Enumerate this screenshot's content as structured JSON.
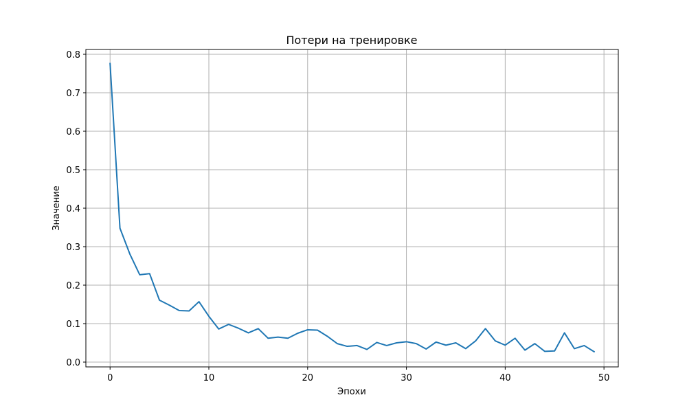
{
  "chart_data": {
    "type": "line",
    "title": "Потери на тренировке",
    "xlabel": "Эпохи",
    "ylabel": "Значение",
    "xlim": [
      -2.45,
      51.45
    ],
    "ylim": [
      -0.0125,
      0.8125
    ],
    "xticks": [
      0,
      10,
      20,
      30,
      40,
      50
    ],
    "yticks": [
      0.0,
      0.1,
      0.2,
      0.3,
      0.4,
      0.5,
      0.6,
      0.7,
      0.8
    ],
    "xtick_labels": [
      "0",
      "10",
      "20",
      "30",
      "40",
      "50"
    ],
    "ytick_labels": [
      "0.0",
      "0.1",
      "0.2",
      "0.3",
      "0.4",
      "0.5",
      "0.6",
      "0.7",
      "0.8"
    ],
    "grid": true,
    "series": [
      {
        "color": "#1f77b4",
        "x": [
          0,
          1,
          2,
          3,
          4,
          5,
          6,
          7,
          8,
          9,
          10,
          11,
          12,
          13,
          14,
          15,
          16,
          17,
          18,
          19,
          20,
          21,
          22,
          23,
          24,
          25,
          26,
          27,
          28,
          29,
          30,
          31,
          32,
          33,
          34,
          35,
          36,
          37,
          38,
          39,
          40,
          41,
          42,
          43,
          44,
          45,
          46,
          47,
          48,
          49
        ],
        "y": [
          0.776,
          0.348,
          0.281,
          0.227,
          0.23,
          0.161,
          0.148,
          0.134,
          0.133,
          0.157,
          0.119,
          0.086,
          0.098,
          0.088,
          0.076,
          0.087,
          0.062,
          0.065,
          0.062,
          0.075,
          0.084,
          0.083,
          0.067,
          0.048,
          0.041,
          0.043,
          0.033,
          0.051,
          0.043,
          0.05,
          0.053,
          0.048,
          0.034,
          0.052,
          0.044,
          0.05,
          0.035,
          0.055,
          0.087,
          0.055,
          0.044,
          0.062,
          0.031,
          0.048,
          0.028,
          0.029,
          0.076,
          0.035,
          0.043,
          0.027
        ]
      }
    ]
  }
}
